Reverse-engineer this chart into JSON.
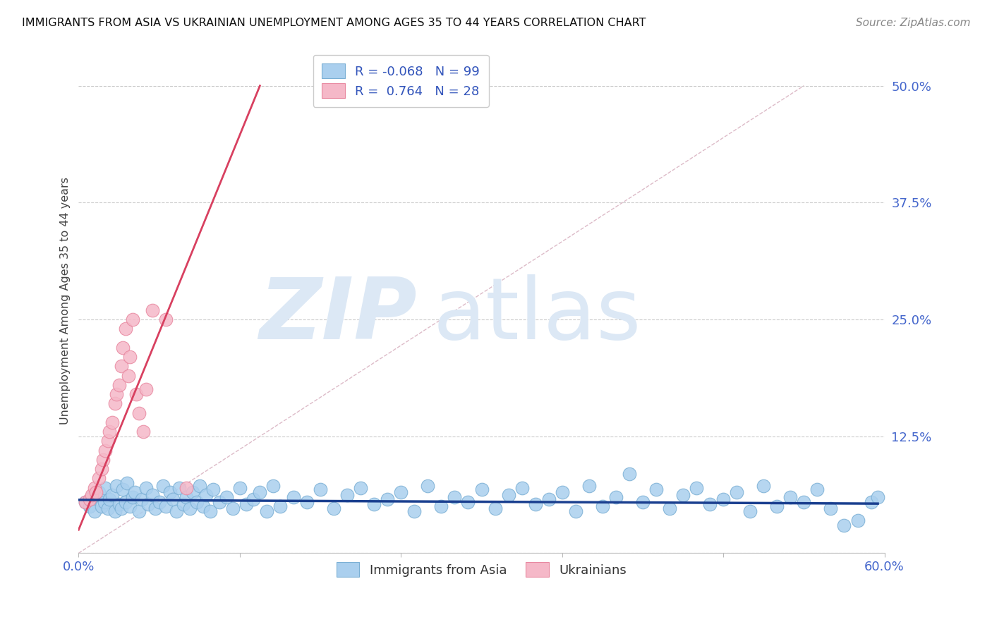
{
  "title": "IMMIGRANTS FROM ASIA VS UKRAINIAN UNEMPLOYMENT AMONG AGES 35 TO 44 YEARS CORRELATION CHART",
  "source": "Source: ZipAtlas.com",
  "ylabel": "Unemployment Among Ages 35 to 44 years",
  "xlim": [
    0.0,
    0.6
  ],
  "ylim": [
    0.0,
    0.54
  ],
  "ytick_positions": [
    0.0,
    0.125,
    0.25,
    0.375,
    0.5
  ],
  "ytick_labels": [
    "",
    "12.5%",
    "25.0%",
    "37.5%",
    "50.0%"
  ],
  "background_color": "#ffffff",
  "grid_color": "#cccccc",
  "watermark_zip": "ZIP",
  "watermark_atlas": "atlas",
  "watermark_color": "#dce8f5",
  "blue_R": -0.068,
  "blue_N": 99,
  "pink_R": 0.764,
  "pink_N": 28,
  "blue_color": "#aacfee",
  "blue_edge_color": "#7aafd4",
  "blue_line_color": "#1a3f8f",
  "pink_color": "#f5b8c8",
  "pink_edge_color": "#e888a0",
  "pink_line_color": "#d84060",
  "ref_line_color": "#ddbbc8",
  "blue_scatter_x": [
    0.005,
    0.008,
    0.01,
    0.012,
    0.015,
    0.017,
    0.019,
    0.02,
    0.022,
    0.023,
    0.025,
    0.027,
    0.028,
    0.03,
    0.032,
    0.033,
    0.035,
    0.036,
    0.038,
    0.04,
    0.042,
    0.045,
    0.047,
    0.05,
    0.052,
    0.055,
    0.057,
    0.06,
    0.063,
    0.065,
    0.068,
    0.07,
    0.073,
    0.075,
    0.078,
    0.08,
    0.083,
    0.085,
    0.088,
    0.09,
    0.093,
    0.095,
    0.098,
    0.1,
    0.105,
    0.11,
    0.115,
    0.12,
    0.125,
    0.13,
    0.135,
    0.14,
    0.145,
    0.15,
    0.16,
    0.17,
    0.18,
    0.19,
    0.2,
    0.21,
    0.22,
    0.23,
    0.24,
    0.25,
    0.26,
    0.27,
    0.28,
    0.29,
    0.3,
    0.31,
    0.32,
    0.33,
    0.34,
    0.35,
    0.36,
    0.37,
    0.38,
    0.39,
    0.4,
    0.41,
    0.42,
    0.43,
    0.44,
    0.45,
    0.46,
    0.47,
    0.48,
    0.49,
    0.5,
    0.51,
    0.52,
    0.53,
    0.54,
    0.55,
    0.56,
    0.57,
    0.58,
    0.59,
    0.595
  ],
  "blue_scatter_y": [
    0.055,
    0.05,
    0.06,
    0.045,
    0.065,
    0.05,
    0.055,
    0.07,
    0.048,
    0.058,
    0.062,
    0.045,
    0.072,
    0.052,
    0.048,
    0.068,
    0.055,
    0.075,
    0.05,
    0.06,
    0.065,
    0.045,
    0.058,
    0.07,
    0.052,
    0.062,
    0.048,
    0.055,
    0.072,
    0.05,
    0.065,
    0.058,
    0.045,
    0.07,
    0.052,
    0.06,
    0.048,
    0.065,
    0.055,
    0.072,
    0.05,
    0.062,
    0.045,
    0.068,
    0.055,
    0.06,
    0.048,
    0.07,
    0.052,
    0.058,
    0.065,
    0.045,
    0.072,
    0.05,
    0.06,
    0.055,
    0.068,
    0.048,
    0.062,
    0.07,
    0.052,
    0.058,
    0.065,
    0.045,
    0.072,
    0.05,
    0.06,
    0.055,
    0.068,
    0.048,
    0.062,
    0.07,
    0.052,
    0.058,
    0.065,
    0.045,
    0.072,
    0.05,
    0.06,
    0.085,
    0.055,
    0.068,
    0.048,
    0.062,
    0.07,
    0.052,
    0.058,
    0.065,
    0.045,
    0.072,
    0.05,
    0.06,
    0.055,
    0.068,
    0.048,
    0.03,
    0.035,
    0.055,
    0.06
  ],
  "pink_scatter_x": [
    0.005,
    0.008,
    0.01,
    0.012,
    0.013,
    0.015,
    0.017,
    0.018,
    0.02,
    0.022,
    0.023,
    0.025,
    0.027,
    0.028,
    0.03,
    0.032,
    0.033,
    0.035,
    0.037,
    0.038,
    0.04,
    0.043,
    0.045,
    0.048,
    0.05,
    0.055,
    0.065,
    0.08
  ],
  "pink_scatter_y": [
    0.055,
    0.058,
    0.062,
    0.07,
    0.065,
    0.08,
    0.09,
    0.1,
    0.11,
    0.12,
    0.13,
    0.14,
    0.16,
    0.17,
    0.18,
    0.2,
    0.22,
    0.24,
    0.19,
    0.21,
    0.25,
    0.17,
    0.15,
    0.13,
    0.175,
    0.26,
    0.25,
    0.07
  ],
  "pink_line_x0": 0.0,
  "pink_line_y0": 0.025,
  "pink_line_x1": 0.135,
  "pink_line_y1": 0.5,
  "blue_line_x0": 0.0,
  "blue_line_y0": 0.057,
  "blue_line_x1": 0.595,
  "blue_line_y1": 0.053,
  "ref_line_x0": 0.0,
  "ref_line_y0": 0.0,
  "ref_line_x1": 0.54,
  "ref_line_y1": 0.5
}
